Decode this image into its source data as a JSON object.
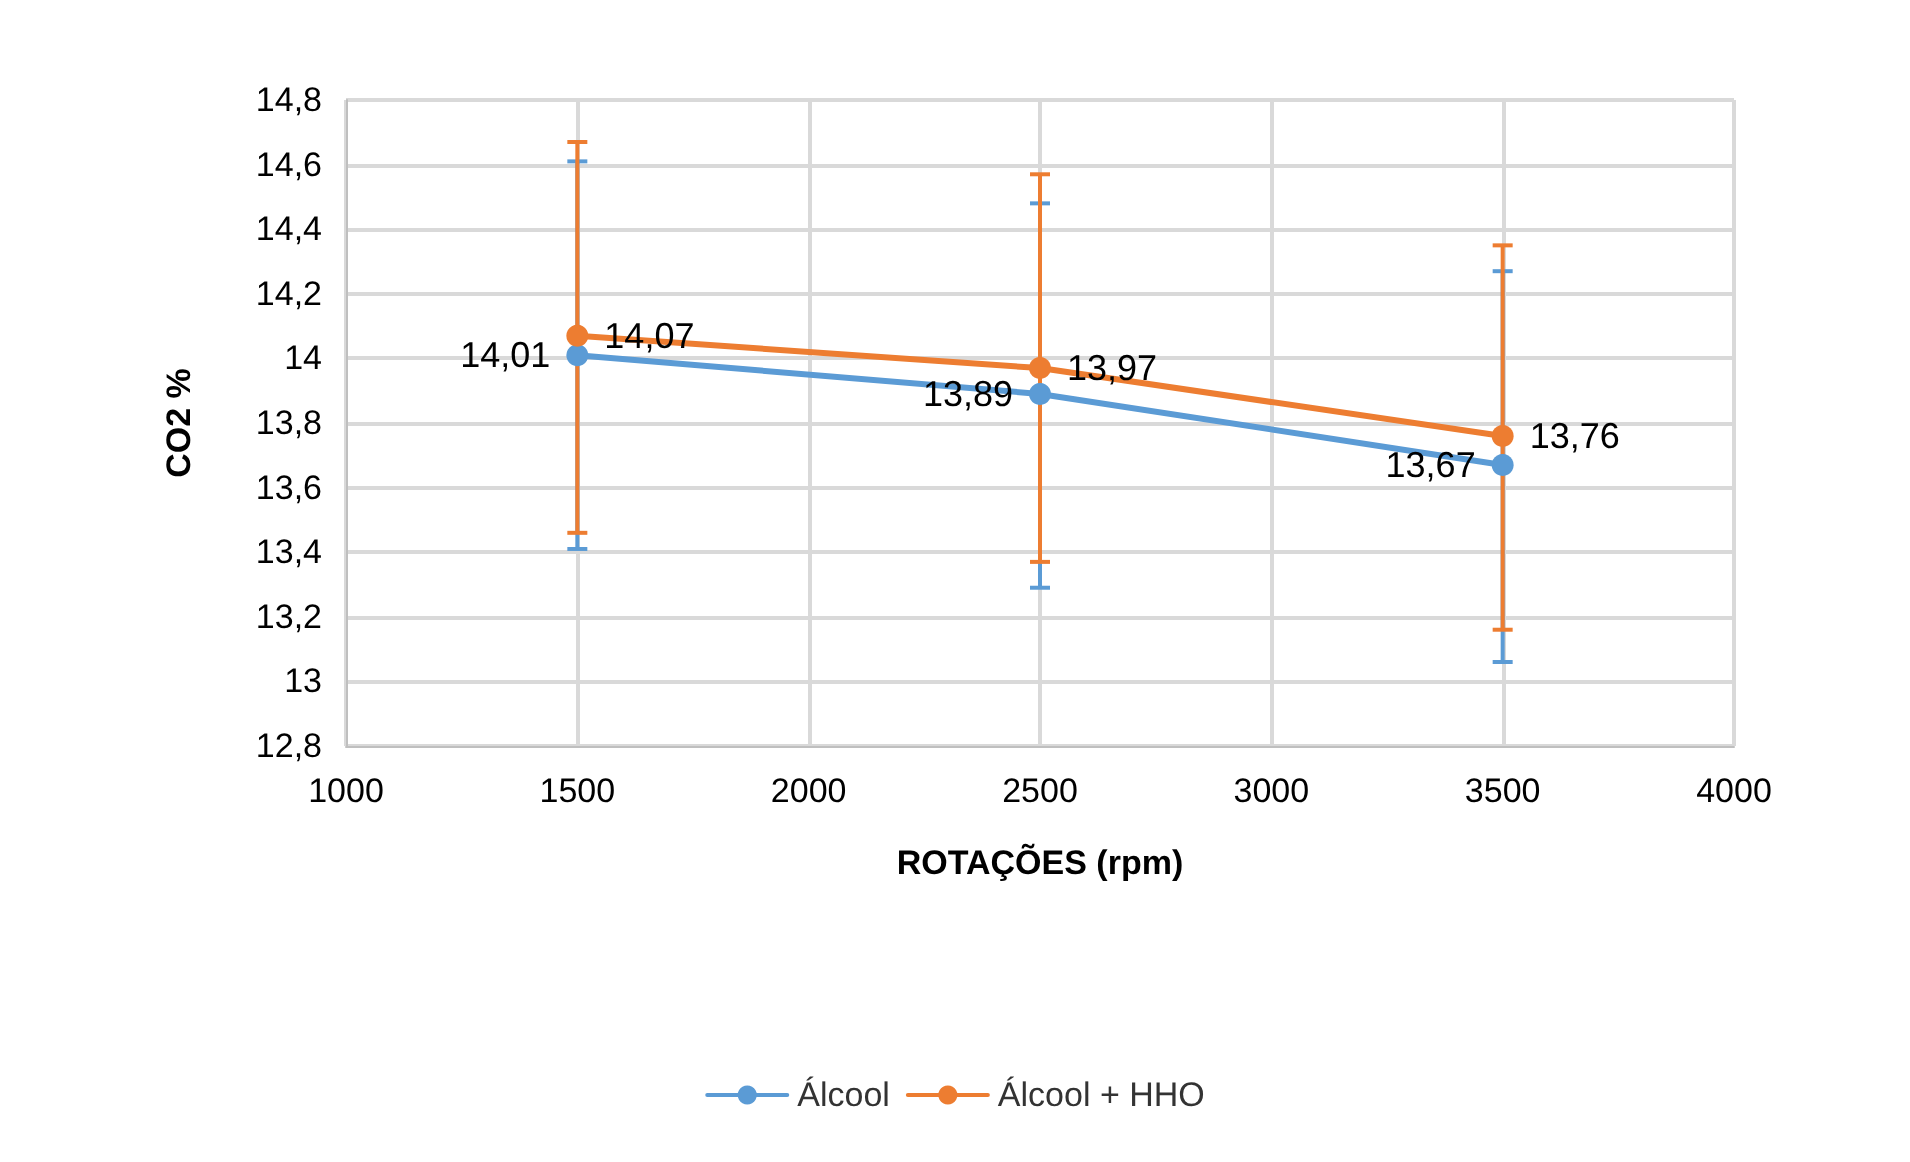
{
  "chart_data": {
    "type": "line",
    "xlabel": "ROTAÇÕES (rpm)",
    "ylabel": "CO2 %",
    "x": [
      1500,
      2500,
      3500
    ],
    "series": [
      {
        "name": "Álcool",
        "color": "#5b9bd5",
        "values": [
          14.01,
          13.89,
          13.67
        ],
        "value_labels": [
          "14,01",
          "13,89",
          "13,67"
        ],
        "errors": [
          [
            13.41,
            14.61
          ],
          [
            13.29,
            14.48
          ],
          [
            13.06,
            14.27
          ]
        ]
      },
      {
        "name": "Álcool + HHO",
        "color": "#ed7d31",
        "values": [
          14.07,
          13.97,
          13.76
        ],
        "value_labels": [
          "14,07",
          "13,97",
          "13,76"
        ],
        "errors": [
          [
            13.46,
            14.67
          ],
          [
            13.37,
            14.57
          ],
          [
            13.16,
            14.35
          ]
        ]
      }
    ],
    "xlim": [
      1000,
      4000
    ],
    "xticks": [
      1000,
      1500,
      2000,
      2500,
      3000,
      3500,
      4000
    ],
    "ylim": [
      12.8,
      14.8
    ],
    "yticks": [
      {
        "value": 12.8,
        "label": "12,8"
      },
      {
        "value": 13,
        "label": "13"
      },
      {
        "value": 13.2,
        "label": "13,2"
      },
      {
        "value": 13.4,
        "label": "13,4"
      },
      {
        "value": 13.6,
        "label": "13,6"
      },
      {
        "value": 13.8,
        "label": "13,8"
      },
      {
        "value": 14,
        "label": "14"
      },
      {
        "value": 14.2,
        "label": "14,2"
      },
      {
        "value": 14.4,
        "label": "14,4"
      },
      {
        "value": 14.6,
        "label": "14,6"
      },
      {
        "value": 14.8,
        "label": "14,8"
      }
    ],
    "grid": true,
    "legend": "bottom",
    "marker": "circle",
    "line_style": "solid"
  }
}
